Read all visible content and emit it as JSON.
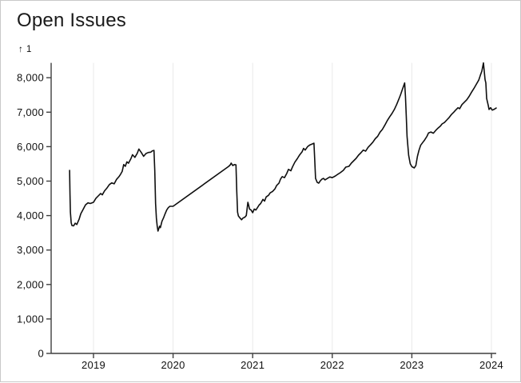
{
  "window": {
    "background": "#ffffff",
    "border_color": "#c9c9c9"
  },
  "chart_data": {
    "type": "line",
    "title": "Open Issues",
    "y_axis_label": "↑ 1",
    "xlabel": "",
    "ylabel": "",
    "legend": "none",
    "grid": "vertical-year-lines",
    "x_domain": [
      2018.468,
      2024.06
    ],
    "y_domain": [
      0,
      8430
    ],
    "x_ticks": [
      {
        "value": 2019,
        "label": "2019"
      },
      {
        "value": 2020,
        "label": "2020"
      },
      {
        "value": 2021,
        "label": "2021"
      },
      {
        "value": 2022,
        "label": "2022"
      },
      {
        "value": 2023,
        "label": "2023"
      },
      {
        "value": 2024,
        "label": "2024"
      }
    ],
    "y_ticks": [
      {
        "value": 0,
        "label": "0"
      },
      {
        "value": 1000,
        "label": "1,000"
      },
      {
        "value": 2000,
        "label": "2,000"
      },
      {
        "value": 3000,
        "label": "3,000"
      },
      {
        "value": 4000,
        "label": "4,000"
      },
      {
        "value": 5000,
        "label": "5,000"
      },
      {
        "value": 6000,
        "label": "6,000"
      },
      {
        "value": 7000,
        "label": "7,000"
      },
      {
        "value": 8000,
        "label": "8,000"
      }
    ],
    "colors": {
      "line": "#0f0f0f",
      "grid": "#e9e9e9",
      "axis": "#3f3f3f",
      "tick_text": "#111111"
    },
    "series": [
      {
        "name": "Open Issues",
        "points": [
          [
            2018.7,
            5310
          ],
          [
            2018.705,
            4600
          ],
          [
            2018.71,
            4100
          ],
          [
            2018.72,
            3790
          ],
          [
            2018.73,
            3710
          ],
          [
            2018.75,
            3700
          ],
          [
            2018.77,
            3780
          ],
          [
            2018.79,
            3740
          ],
          [
            2018.82,
            3900
          ],
          [
            2018.84,
            4050
          ],
          [
            2018.87,
            4180
          ],
          [
            2018.9,
            4310
          ],
          [
            2018.93,
            4370
          ],
          [
            2018.96,
            4350
          ],
          [
            2019.0,
            4385
          ],
          [
            2019.03,
            4500
          ],
          [
            2019.06,
            4570
          ],
          [
            2019.09,
            4640
          ],
          [
            2019.11,
            4600
          ],
          [
            2019.14,
            4720
          ],
          [
            2019.17,
            4800
          ],
          [
            2019.2,
            4900
          ],
          [
            2019.23,
            4950
          ],
          [
            2019.26,
            4920
          ],
          [
            2019.29,
            5050
          ],
          [
            2019.32,
            5130
          ],
          [
            2019.34,
            5200
          ],
          [
            2019.36,
            5280
          ],
          [
            2019.38,
            5480
          ],
          [
            2019.4,
            5430
          ],
          [
            2019.42,
            5560
          ],
          [
            2019.44,
            5520
          ],
          [
            2019.47,
            5650
          ],
          [
            2019.49,
            5765
          ],
          [
            2019.52,
            5690
          ],
          [
            2019.55,
            5810
          ],
          [
            2019.57,
            5930
          ],
          [
            2019.6,
            5830
          ],
          [
            2019.63,
            5720
          ],
          [
            2019.66,
            5800
          ],
          [
            2019.69,
            5830
          ],
          [
            2019.72,
            5840
          ],
          [
            2019.74,
            5880
          ],
          [
            2019.76,
            5890
          ],
          [
            2019.77,
            5300
          ],
          [
            2019.78,
            4350
          ],
          [
            2019.79,
            3930
          ],
          [
            2019.8,
            3700
          ],
          [
            2019.81,
            3550
          ],
          [
            2019.83,
            3690
          ],
          [
            2019.84,
            3650
          ],
          [
            2019.86,
            3835
          ],
          [
            2019.88,
            3930
          ],
          [
            2019.9,
            4050
          ],
          [
            2019.92,
            4160
          ],
          [
            2019.94,
            4230
          ],
          [
            2019.96,
            4270
          ],
          [
            2020.0,
            4270
          ],
          [
            2020.7,
            5430
          ],
          [
            2020.72,
            5475
          ],
          [
            2020.73,
            5522
          ],
          [
            2020.75,
            5450
          ],
          [
            2020.77,
            5480
          ],
          [
            2020.79,
            5470
          ],
          [
            2020.8,
            4700
          ],
          [
            2020.81,
            4100
          ],
          [
            2020.82,
            3990
          ],
          [
            2020.84,
            3930
          ],
          [
            2020.86,
            3880
          ],
          [
            2020.88,
            3930
          ],
          [
            2020.9,
            3950
          ],
          [
            2020.92,
            4000
          ],
          [
            2020.94,
            4385
          ],
          [
            2020.95,
            4300
          ],
          [
            2020.96,
            4190
          ],
          [
            2020.98,
            4160
          ],
          [
            2021.0,
            4083
          ],
          [
            2021.02,
            4190
          ],
          [
            2021.04,
            4160
          ],
          [
            2021.06,
            4230
          ],
          [
            2021.08,
            4305
          ],
          [
            2021.1,
            4350
          ],
          [
            2021.13,
            4470
          ],
          [
            2021.15,
            4420
          ],
          [
            2021.17,
            4540
          ],
          [
            2021.2,
            4590
          ],
          [
            2021.22,
            4660
          ],
          [
            2021.25,
            4700
          ],
          [
            2021.28,
            4775
          ],
          [
            2021.3,
            4870
          ],
          [
            2021.33,
            4940
          ],
          [
            2021.35,
            5060
          ],
          [
            2021.37,
            5130
          ],
          [
            2021.4,
            5100
          ],
          [
            2021.43,
            5230
          ],
          [
            2021.45,
            5340
          ],
          [
            2021.48,
            5300
          ],
          [
            2021.5,
            5410
          ],
          [
            2021.53,
            5550
          ],
          [
            2021.56,
            5650
          ],
          [
            2021.59,
            5760
          ],
          [
            2021.62,
            5850
          ],
          [
            2021.64,
            5950
          ],
          [
            2021.66,
            5900
          ],
          [
            2021.69,
            6000
          ],
          [
            2021.72,
            6050
          ],
          [
            2021.75,
            6080
          ],
          [
            2021.77,
            6100
          ],
          [
            2021.78,
            5600
          ],
          [
            2021.79,
            5080
          ],
          [
            2021.81,
            4965
          ],
          [
            2021.83,
            4940
          ],
          [
            2021.85,
            5010
          ],
          [
            2021.87,
            5057
          ],
          [
            2021.89,
            5080
          ],
          [
            2021.91,
            5034
          ],
          [
            2021.94,
            5080
          ],
          [
            2021.97,
            5120
          ],
          [
            2022.0,
            5100
          ],
          [
            2022.04,
            5150
          ],
          [
            2022.07,
            5200
          ],
          [
            2022.1,
            5243
          ],
          [
            2022.14,
            5313
          ],
          [
            2022.17,
            5406
          ],
          [
            2022.21,
            5430
          ],
          [
            2022.24,
            5522
          ],
          [
            2022.27,
            5592
          ],
          [
            2022.3,
            5662
          ],
          [
            2022.33,
            5754
          ],
          [
            2022.36,
            5824
          ],
          [
            2022.39,
            5900
          ],
          [
            2022.42,
            5870
          ],
          [
            2022.45,
            5980
          ],
          [
            2022.48,
            6050
          ],
          [
            2022.51,
            6130
          ],
          [
            2022.54,
            6230
          ],
          [
            2022.57,
            6300
          ],
          [
            2022.6,
            6420
          ],
          [
            2022.63,
            6500
          ],
          [
            2022.66,
            6620
          ],
          [
            2022.69,
            6750
          ],
          [
            2022.72,
            6860
          ],
          [
            2022.75,
            6960
          ],
          [
            2022.78,
            7080
          ],
          [
            2022.81,
            7230
          ],
          [
            2022.84,
            7400
          ],
          [
            2022.86,
            7520
          ],
          [
            2022.88,
            7650
          ],
          [
            2022.9,
            7780
          ],
          [
            2022.91,
            7850
          ],
          [
            2022.92,
            7460
          ],
          [
            2022.93,
            6900
          ],
          [
            2022.94,
            6300
          ],
          [
            2022.96,
            5750
          ],
          [
            2022.98,
            5500
          ],
          [
            2023.0,
            5420
          ],
          [
            2023.03,
            5383
          ],
          [
            2023.05,
            5450
          ],
          [
            2023.07,
            5720
          ],
          [
            2023.09,
            5900
          ],
          [
            2023.11,
            6040
          ],
          [
            2023.14,
            6130
          ],
          [
            2023.16,
            6190
          ],
          [
            2023.19,
            6300
          ],
          [
            2023.21,
            6400
          ],
          [
            2023.24,
            6425
          ],
          [
            2023.27,
            6390
          ],
          [
            2023.3,
            6470
          ],
          [
            2023.33,
            6540
          ],
          [
            2023.36,
            6600
          ],
          [
            2023.38,
            6660
          ],
          [
            2023.41,
            6700
          ],
          [
            2023.44,
            6775
          ],
          [
            2023.47,
            6850
          ],
          [
            2023.5,
            6940
          ],
          [
            2023.53,
            7010
          ],
          [
            2023.55,
            7060
          ],
          [
            2023.58,
            7130
          ],
          [
            2023.6,
            7100
          ],
          [
            2023.63,
            7220
          ],
          [
            2023.66,
            7290
          ],
          [
            2023.69,
            7360
          ],
          [
            2023.72,
            7460
          ],
          [
            2023.75,
            7580
          ],
          [
            2023.78,
            7690
          ],
          [
            2023.81,
            7810
          ],
          [
            2023.84,
            7930
          ],
          [
            2023.86,
            8070
          ],
          [
            2023.88,
            8190
          ],
          [
            2023.9,
            8430
          ],
          [
            2023.92,
            7950
          ],
          [
            2023.93,
            7850
          ],
          [
            2023.94,
            7400
          ],
          [
            2023.96,
            7200
          ],
          [
            2023.97,
            7080
          ],
          [
            2023.99,
            7130
          ],
          [
            2024.01,
            7060
          ],
          [
            2024.03,
            7080
          ],
          [
            2024.06,
            7120
          ]
        ]
      }
    ]
  }
}
